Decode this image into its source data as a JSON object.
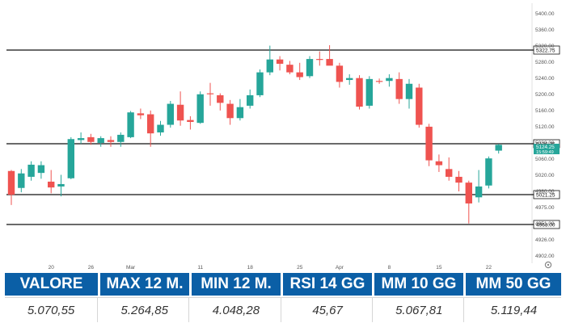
{
  "chart_data": {
    "type": "candlestick",
    "ylim": [
      4895,
      5420
    ],
    "y_ticks": [
      "5400.00",
      "5360.00",
      "5320.00",
      "5280.00",
      "5240.00",
      "5200.00",
      "5160.00",
      "5120.00",
      "5080.00",
      "5060.00",
      "5020.00",
      "4980.00",
      "4975.00",
      "4951.00",
      "4926.00",
      "4902.00"
    ],
    "x_ticks": [
      {
        "label": "20",
        "index": 4
      },
      {
        "label": "26",
        "index": 8
      },
      {
        "label": "Mar",
        "index": 12
      },
      {
        "label": "11",
        "index": 19
      },
      {
        "label": "18",
        "index": 24
      },
      {
        "label": "25",
        "index": 29
      },
      {
        "label": "Apr",
        "index": 33
      },
      {
        "label": "8",
        "index": 38
      },
      {
        "label": "15",
        "index": 43
      },
      {
        "label": "22",
        "index": 48
      }
    ],
    "hlines": [
      {
        "label": "5322.75",
        "value": 5322.75
      },
      {
        "label": "5126.25",
        "value": 5126.25
      },
      {
        "label": "5021.25",
        "value": 5021.25
      },
      {
        "label": "4963.00",
        "value": 4963.0
      }
    ],
    "last_price": {
      "label": "5124.25",
      "sublabel": "15:59:49",
      "value": 5124.25
    },
    "candles": [
      {
        "o": 5070,
        "h": 5072,
        "l": 5001,
        "c": 5021
      },
      {
        "o": 5035,
        "h": 5074,
        "l": 5026,
        "c": 5065
      },
      {
        "o": 5058,
        "h": 5090,
        "l": 5050,
        "c": 5083
      },
      {
        "o": 5066,
        "h": 5090,
        "l": 5054,
        "c": 5082
      },
      {
        "o": 5048,
        "h": 5072,
        "l": 5024,
        "c": 5036
      },
      {
        "o": 5038,
        "h": 5062,
        "l": 5018,
        "c": 5043
      },
      {
        "o": 5055,
        "h": 5140,
        "l": 5053,
        "c": 5136
      },
      {
        "o": 5134,
        "h": 5150,
        "l": 5126,
        "c": 5138
      },
      {
        "o": 5140,
        "h": 5147,
        "l": 5124,
        "c": 5130
      },
      {
        "o": 5128,
        "h": 5142,
        "l": 5120,
        "c": 5138
      },
      {
        "o": 5134,
        "h": 5142,
        "l": 5120,
        "c": 5130
      },
      {
        "o": 5130,
        "h": 5150,
        "l": 5120,
        "c": 5145
      },
      {
        "o": 5140,
        "h": 5195,
        "l": 5138,
        "c": 5192
      },
      {
        "o": 5190,
        "h": 5200,
        "l": 5178,
        "c": 5186
      },
      {
        "o": 5188,
        "h": 5196,
        "l": 5120,
        "c": 5148
      },
      {
        "o": 5150,
        "h": 5174,
        "l": 5143,
        "c": 5166
      },
      {
        "o": 5166,
        "h": 5216,
        "l": 5160,
        "c": 5210
      },
      {
        "o": 5208,
        "h": 5236,
        "l": 5164,
        "c": 5175
      },
      {
        "o": 5176,
        "h": 5184,
        "l": 5156,
        "c": 5172
      },
      {
        "o": 5170,
        "h": 5236,
        "l": 5168,
        "c": 5230
      },
      {
        "o": 5232,
        "h": 5254,
        "l": 5206,
        "c": 5230
      },
      {
        "o": 5228,
        "h": 5232,
        "l": 5196,
        "c": 5212
      },
      {
        "o": 5210,
        "h": 5218,
        "l": 5166,
        "c": 5180
      },
      {
        "o": 5180,
        "h": 5220,
        "l": 5175,
        "c": 5203
      },
      {
        "o": 5206,
        "h": 5240,
        "l": 5200,
        "c": 5228
      },
      {
        "o": 5228,
        "h": 5282,
        "l": 5224,
        "c": 5276
      },
      {
        "o": 5276,
        "h": 5332,
        "l": 5270,
        "c": 5303
      },
      {
        "o": 5303,
        "h": 5310,
        "l": 5280,
        "c": 5294
      },
      {
        "o": 5292,
        "h": 5300,
        "l": 5272,
        "c": 5276
      },
      {
        "o": 5276,
        "h": 5296,
        "l": 5260,
        "c": 5266
      },
      {
        "o": 5268,
        "h": 5310,
        "l": 5264,
        "c": 5304
      },
      {
        "o": 5304,
        "h": 5320,
        "l": 5290,
        "c": 5302
      },
      {
        "o": 5304,
        "h": 5333,
        "l": 5292,
        "c": 5290
      },
      {
        "o": 5290,
        "h": 5296,
        "l": 5244,
        "c": 5256
      },
      {
        "o": 5260,
        "h": 5272,
        "l": 5250,
        "c": 5264
      },
      {
        "o": 5264,
        "h": 5270,
        "l": 5198,
        "c": 5204
      },
      {
        "o": 5206,
        "h": 5268,
        "l": 5200,
        "c": 5262
      },
      {
        "o": 5258,
        "h": 5263,
        "l": 5252,
        "c": 5256
      },
      {
        "o": 5258,
        "h": 5272,
        "l": 5246,
        "c": 5264
      },
      {
        "o": 5262,
        "h": 5276,
        "l": 5210,
        "c": 5220
      },
      {
        "o": 5220,
        "h": 5262,
        "l": 5200,
        "c": 5252
      },
      {
        "o": 5244,
        "h": 5252,
        "l": 5160,
        "c": 5166
      },
      {
        "o": 5162,
        "h": 5168,
        "l": 5080,
        "c": 5092
      },
      {
        "o": 5090,
        "h": 5104,
        "l": 5068,
        "c": 5082
      },
      {
        "o": 5074,
        "h": 5098,
        "l": 5050,
        "c": 5058
      },
      {
        "o": 5058,
        "h": 5070,
        "l": 5028,
        "c": 5046
      },
      {
        "o": 5046,
        "h": 5050,
        "l": 4965,
        "c": 5004
      },
      {
        "o": 5016,
        "h": 5072,
        "l": 5006,
        "c": 5038
      },
      {
        "o": 5040,
        "h": 5100,
        "l": 5034,
        "c": 5096
      },
      {
        "o": 5112,
        "h": 5126,
        "l": 5106,
        "c": 5124
      }
    ]
  },
  "stats": {
    "headers": [
      "VALORE",
      "MAX 12 M.",
      "MIN 12 M.",
      "RSI 14 GG",
      "MM 10 GG",
      "MM 50 GG"
    ],
    "values": [
      "5.070,55",
      "5.264,85",
      "4.048,28",
      "45,67",
      "5.067,81",
      "5.119,44"
    ]
  },
  "colors": {
    "up": "#26a69a",
    "down": "#ef5350",
    "header_bg": "#0b5fa6",
    "line": "#111111"
  },
  "icons": {
    "settings": "gear-icon"
  }
}
